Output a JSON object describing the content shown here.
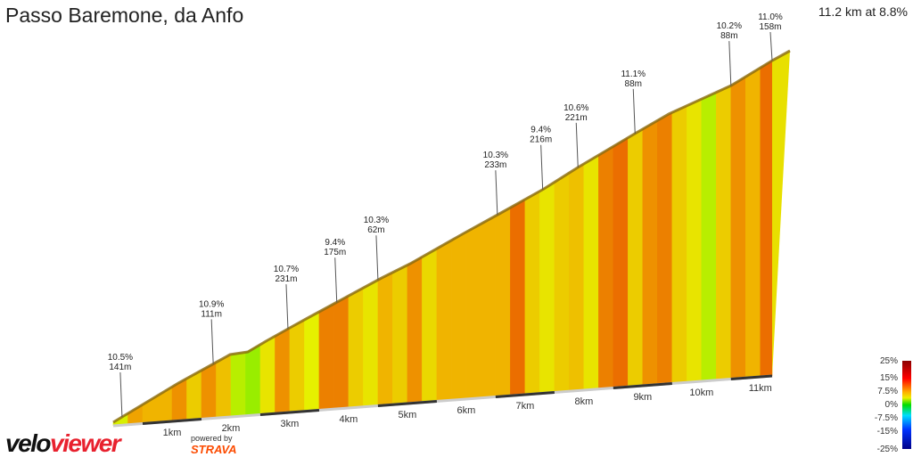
{
  "title": "Passo Baremone, da Anfo",
  "summary": "11.2 km at 8.8%",
  "logo": {
    "part1": "velo",
    "part2": "viewer",
    "powered": "powered by",
    "strava": "STRAVA"
  },
  "chart_data": {
    "type": "area",
    "title": "Passo Baremone, da Anfo",
    "distance_km": 11.2,
    "avg_gradient_pct": 8.8,
    "segment_length_km": 0.25,
    "gradients": [
      7,
      10.5,
      10,
      10,
      11,
      9,
      11,
      9.5,
      6,
      5,
      8,
      11,
      9,
      7.5,
      11.5,
      11.5,
      9,
      8,
      10,
      9,
      11,
      8.5,
      10,
      10,
      10,
      10,
      10,
      12,
      9,
      8,
      9,
      9.5,
      8,
      11.5,
      12,
      9,
      11,
      11.5,
      9,
      8,
      6,
      9,
      11,
      10,
      12
    ],
    "x_ticks": [
      "1km",
      "2km",
      "3km",
      "4km",
      "5km",
      "6km",
      "7km",
      "8km",
      "9km",
      "10km",
      "11km"
    ],
    "annotations": [
      {
        "km": 0.15,
        "grad": "10.5%",
        "len": "141m"
      },
      {
        "km": 1.7,
        "grad": "10.9%",
        "len": "111m"
      },
      {
        "km": 2.97,
        "grad": "10.7%",
        "len": "231m"
      },
      {
        "km": 3.8,
        "grad": "9.4%",
        "len": "175m"
      },
      {
        "km": 4.5,
        "grad": "10.3%",
        "len": "62m"
      },
      {
        "km": 6.53,
        "grad": "10.3%",
        "len": "233m"
      },
      {
        "km": 7.3,
        "grad": "9.4%",
        "len": "216m"
      },
      {
        "km": 7.9,
        "grad": "10.6%",
        "len": "221m"
      },
      {
        "km": 8.87,
        "grad": "11.1%",
        "len": "88m"
      },
      {
        "km": 10.5,
        "grad": "10.2%",
        "len": "88m"
      },
      {
        "km": 11.2,
        "grad": "11.0%",
        "len": "158m"
      }
    ],
    "legend": {
      "labels": [
        "25%",
        "15%",
        "7.5%",
        "0%",
        "-7.5%",
        "-15%",
        "-25%"
      ],
      "placement": "bottom-right"
    }
  }
}
